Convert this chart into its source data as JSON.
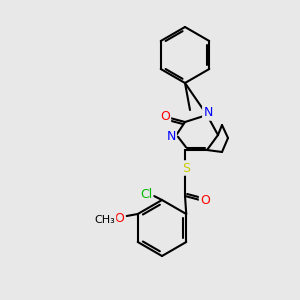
{
  "bg_color": "#e8e8e8",
  "bond_color": "#000000",
  "bond_width": 1.5,
  "atom_colors": {
    "N": "#0000ff",
    "O": "#ff0000",
    "S": "#cccc00",
    "Cl": "#00bb00",
    "C": "#000000"
  },
  "font_size": 9
}
